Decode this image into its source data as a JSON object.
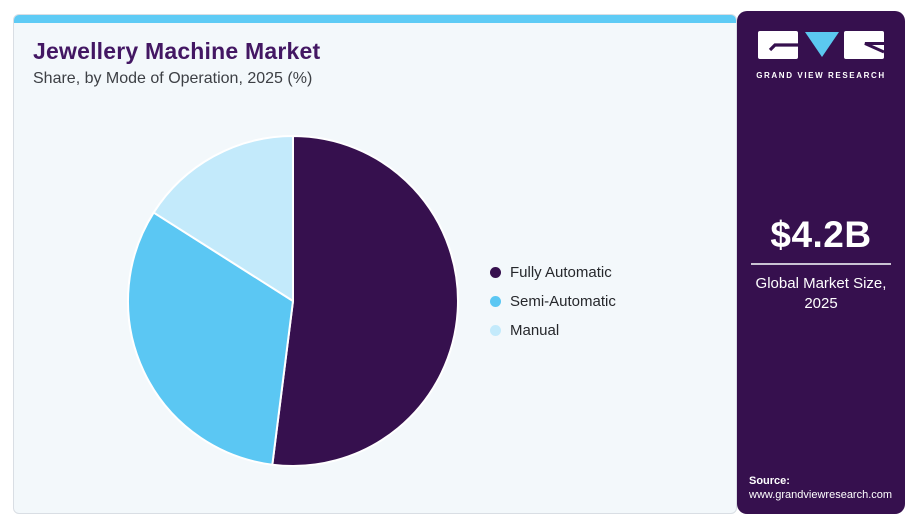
{
  "header": {
    "title": "Jewellery Machine Market",
    "subtitle": "Share, by Mode of Operation, 2025 (%)"
  },
  "chart_data": {
    "type": "pie",
    "title": "Jewellery Machine Market Share, by Mode of Operation, 2025 (%)",
    "unit": "%",
    "start_angle_deg": 0,
    "direction": "clockwise",
    "legend_position": "right",
    "slices": [
      {
        "label": "Fully Automatic",
        "value": 52,
        "color": "#36104e"
      },
      {
        "label": "Semi-Automatic",
        "value": 32,
        "color": "#5bc7f3"
      },
      {
        "label": "Manual",
        "value": 16,
        "color": "#c3eafb"
      }
    ]
  },
  "sidebar": {
    "brand": "GRAND VIEW RESEARCH",
    "market_size": {
      "value": "$4.2B",
      "label_line1": "Global Market Size,",
      "label_line2": "2025"
    },
    "source": {
      "label": "Source:",
      "url": "www.grandviewresearch.com"
    }
  },
  "colors": {
    "accent_bar": "#5ecbf5",
    "card_background": "#f3f8fb",
    "card_border": "#d9dee4",
    "title_text": "#431763",
    "subtitle_text": "#3d4045",
    "sidebar_background": "#36104e",
    "logo_triangle": "#5bc8f0",
    "pie_slice_stroke": "#ffffff"
  }
}
